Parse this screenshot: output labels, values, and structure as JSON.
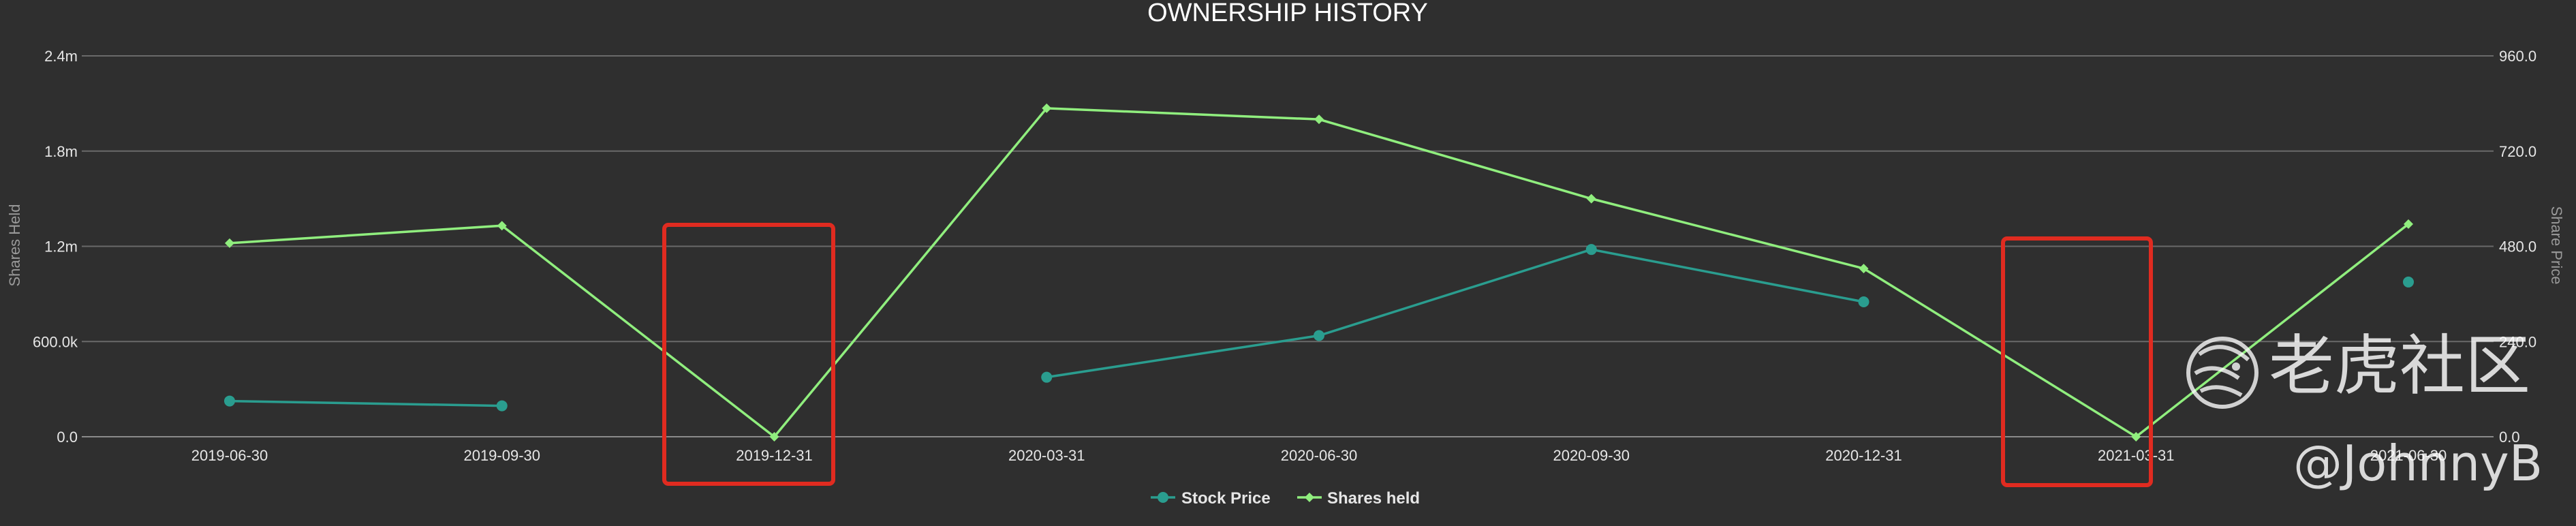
{
  "chart_data": {
    "type": "line",
    "title": "OWNERSHIP HISTORY",
    "categories": [
      "2019-06-30",
      "2019-09-30",
      "2019-12-31",
      "2020-03-31",
      "2020-06-30",
      "2020-09-30",
      "2020-12-31",
      "2021-03-31",
      "2021-06-30"
    ],
    "y_left": {
      "label": "Shares Held",
      "ticks": [
        "0.0",
        "600.0k",
        "1.2m",
        "1.8m",
        "2.4m"
      ],
      "range": [
        0,
        2400000
      ]
    },
    "y_right": {
      "label": "Share Price",
      "ticks": [
        "0.0",
        "240.0",
        "480.0",
        "720.0",
        "960.0"
      ],
      "range": [
        0,
        960
      ]
    },
    "grid": true,
    "legend": {
      "position": "bottom-center"
    },
    "series": [
      {
        "name": "Stock Price",
        "axis": "right",
        "color": "#2a9d8f",
        "marker": "circle",
        "values": [
          90,
          78,
          null,
          150,
          255,
          472,
          340,
          null,
          390
        ]
      },
      {
        "name": "Shares held",
        "axis": "left",
        "color": "#90ee7e",
        "marker": "diamond",
        "values": [
          1220000,
          1330000,
          0,
          2070000,
          2000000,
          1500000,
          1060000,
          0,
          1340000
        ]
      }
    ],
    "highlights": [
      {
        "category": "2019-12-31",
        "color": "#e02b20"
      },
      {
        "category": "2021-03-31",
        "color": "#e02b20"
      }
    ]
  },
  "watermark": {
    "brand": "老虎社区",
    "handle": "@JohnnyB",
    "icon": "tiger-logo-icon"
  }
}
